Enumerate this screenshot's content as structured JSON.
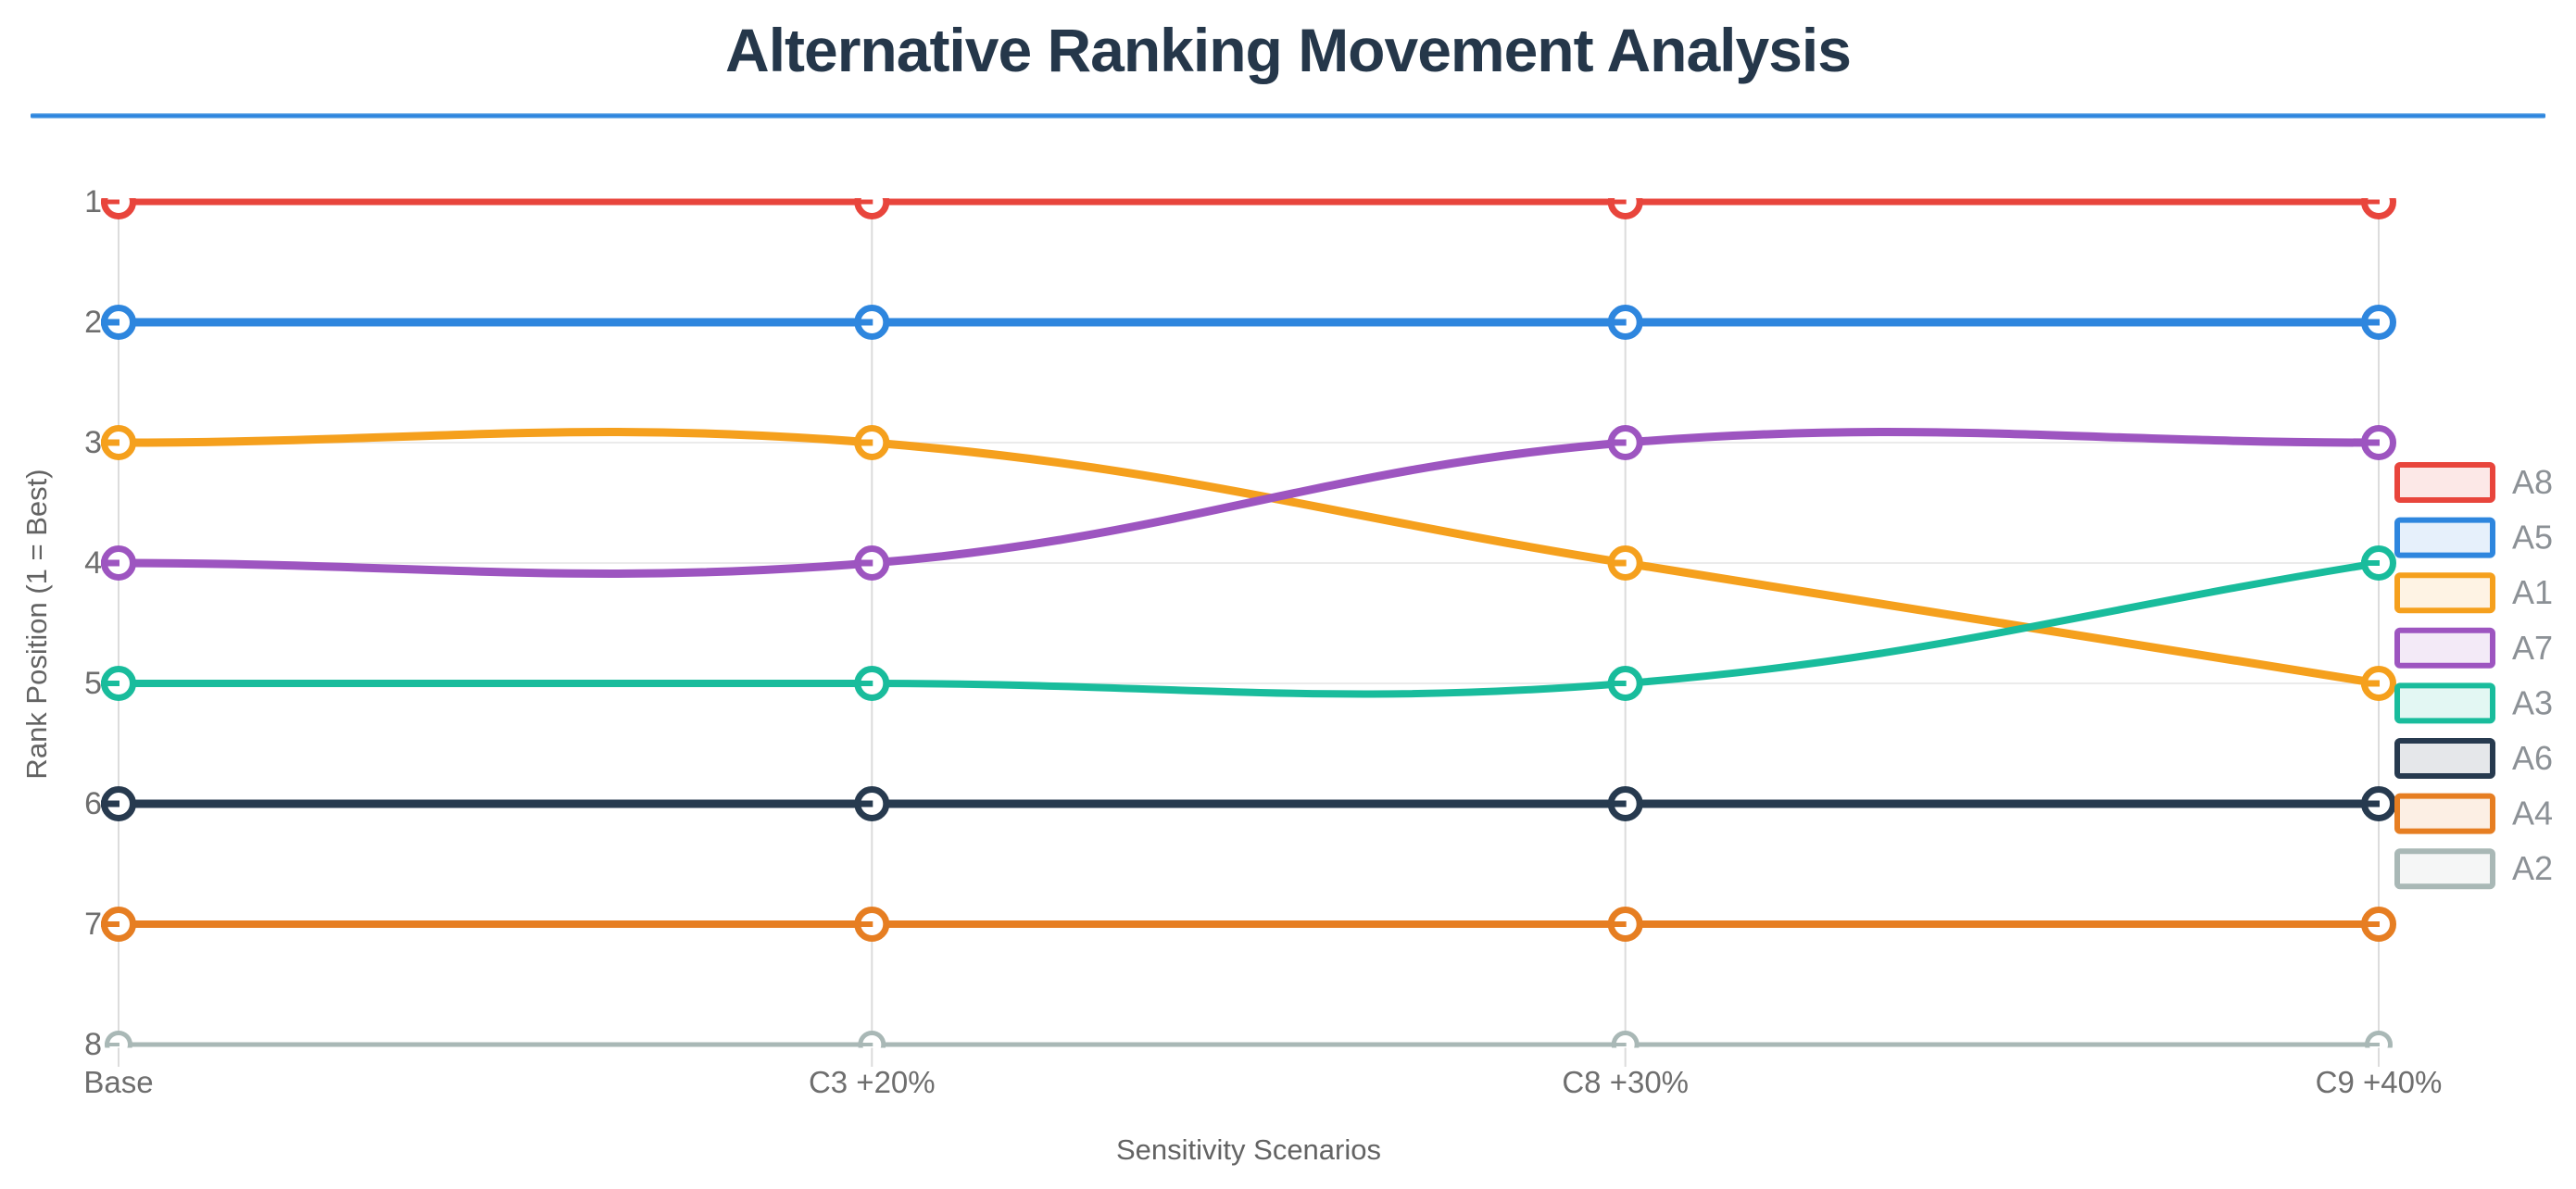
{
  "chart_data": {
    "type": "line",
    "title": "Alternative Ranking Movement Analysis",
    "xlabel": "Sensitivity Scenarios",
    "ylabel": "Rank Position (1 = Best)",
    "categories": [
      "Base",
      "C3 +20%",
      "C8 +30%",
      "C9 +40%"
    ],
    "y_ticks": [
      1,
      2,
      3,
      4,
      5,
      6,
      7,
      8
    ],
    "y_axis": {
      "inverted": true,
      "range": [
        1,
        8
      ]
    },
    "grid": true,
    "legend_position": "right",
    "series": [
      {
        "name": "A8",
        "color": "#e8453c",
        "values": [
          1,
          1,
          1,
          1
        ],
        "line_width": 7
      },
      {
        "name": "A5",
        "color": "#2e86de",
        "values": [
          2,
          2,
          2,
          2
        ],
        "line_width": 9
      },
      {
        "name": "A1",
        "color": "#f5a01d",
        "values": [
          3,
          3,
          4,
          5
        ],
        "line_width": 9
      },
      {
        "name": "A7",
        "color": "#9d55c0",
        "values": [
          4,
          4,
          3,
          3
        ],
        "line_width": 9
      },
      {
        "name": "A3",
        "color": "#19bc9c",
        "values": [
          5,
          5,
          5,
          4
        ],
        "line_width": 8
      },
      {
        "name": "A6",
        "color": "#273a4f",
        "values": [
          6,
          6,
          6,
          6
        ],
        "line_width": 9
      },
      {
        "name": "A4",
        "color": "#e67e22",
        "values": [
          7,
          7,
          7,
          7
        ],
        "line_width": 8
      },
      {
        "name": "A2",
        "color": "#a9b8b6",
        "values": [
          8,
          8,
          8,
          8
        ],
        "line_width": 5
      }
    ]
  },
  "style": {
    "divider_color": "#2e86de",
    "title_color": "#25374a",
    "tick_color": "#6e6e6e",
    "axis_title_color": "#636363",
    "legend_text_color": "#8c9196",
    "grid_vertical_color": "#dcdcdc",
    "grid_horizontal_color": "#ebebeb",
    "background_color": "#ffffff"
  }
}
